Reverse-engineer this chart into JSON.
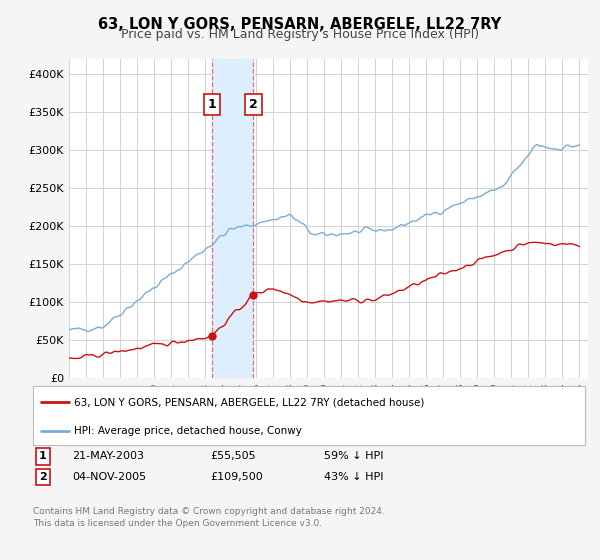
{
  "title": "63, LON Y GORS, PENSARN, ABERGELE, LL22 7RY",
  "subtitle": "Price paid vs. HM Land Registry's House Price Index (HPI)",
  "ylim": [
    0,
    420000
  ],
  "xlim_start": 1995.0,
  "xlim_end": 2025.5,
  "ytick_labels": [
    "£0",
    "£50K",
    "£100K",
    "£150K",
    "£200K",
    "£250K",
    "£300K",
    "£350K",
    "£400K"
  ],
  "ytick_values": [
    0,
    50000,
    100000,
    150000,
    200000,
    250000,
    300000,
    350000,
    400000
  ],
  "hpi_color": "#7aadd4",
  "price_color": "#cc1111",
  "sale1_date_x": 2003.385,
  "sale1_price": 55505,
  "sale2_date_x": 2005.842,
  "sale2_price": 109500,
  "shaded_color": "#ddeeff",
  "dashed_color": "#dd6666",
  "legend_line1": "63, LON Y GORS, PENSARN, ABERGELE, LL22 7RY (detached house)",
  "legend_line2": "HPI: Average price, detached house, Conwy",
  "footer": "Contains HM Land Registry data © Crown copyright and database right 2024.\nThis data is licensed under the Open Government Licence v3.0.",
  "bg_color": "#f5f5f5",
  "plot_bg_color": "#ffffff",
  "grid_color": "#cccccc",
  "title_fontsize": 10.5,
  "subtitle_fontsize": 9
}
